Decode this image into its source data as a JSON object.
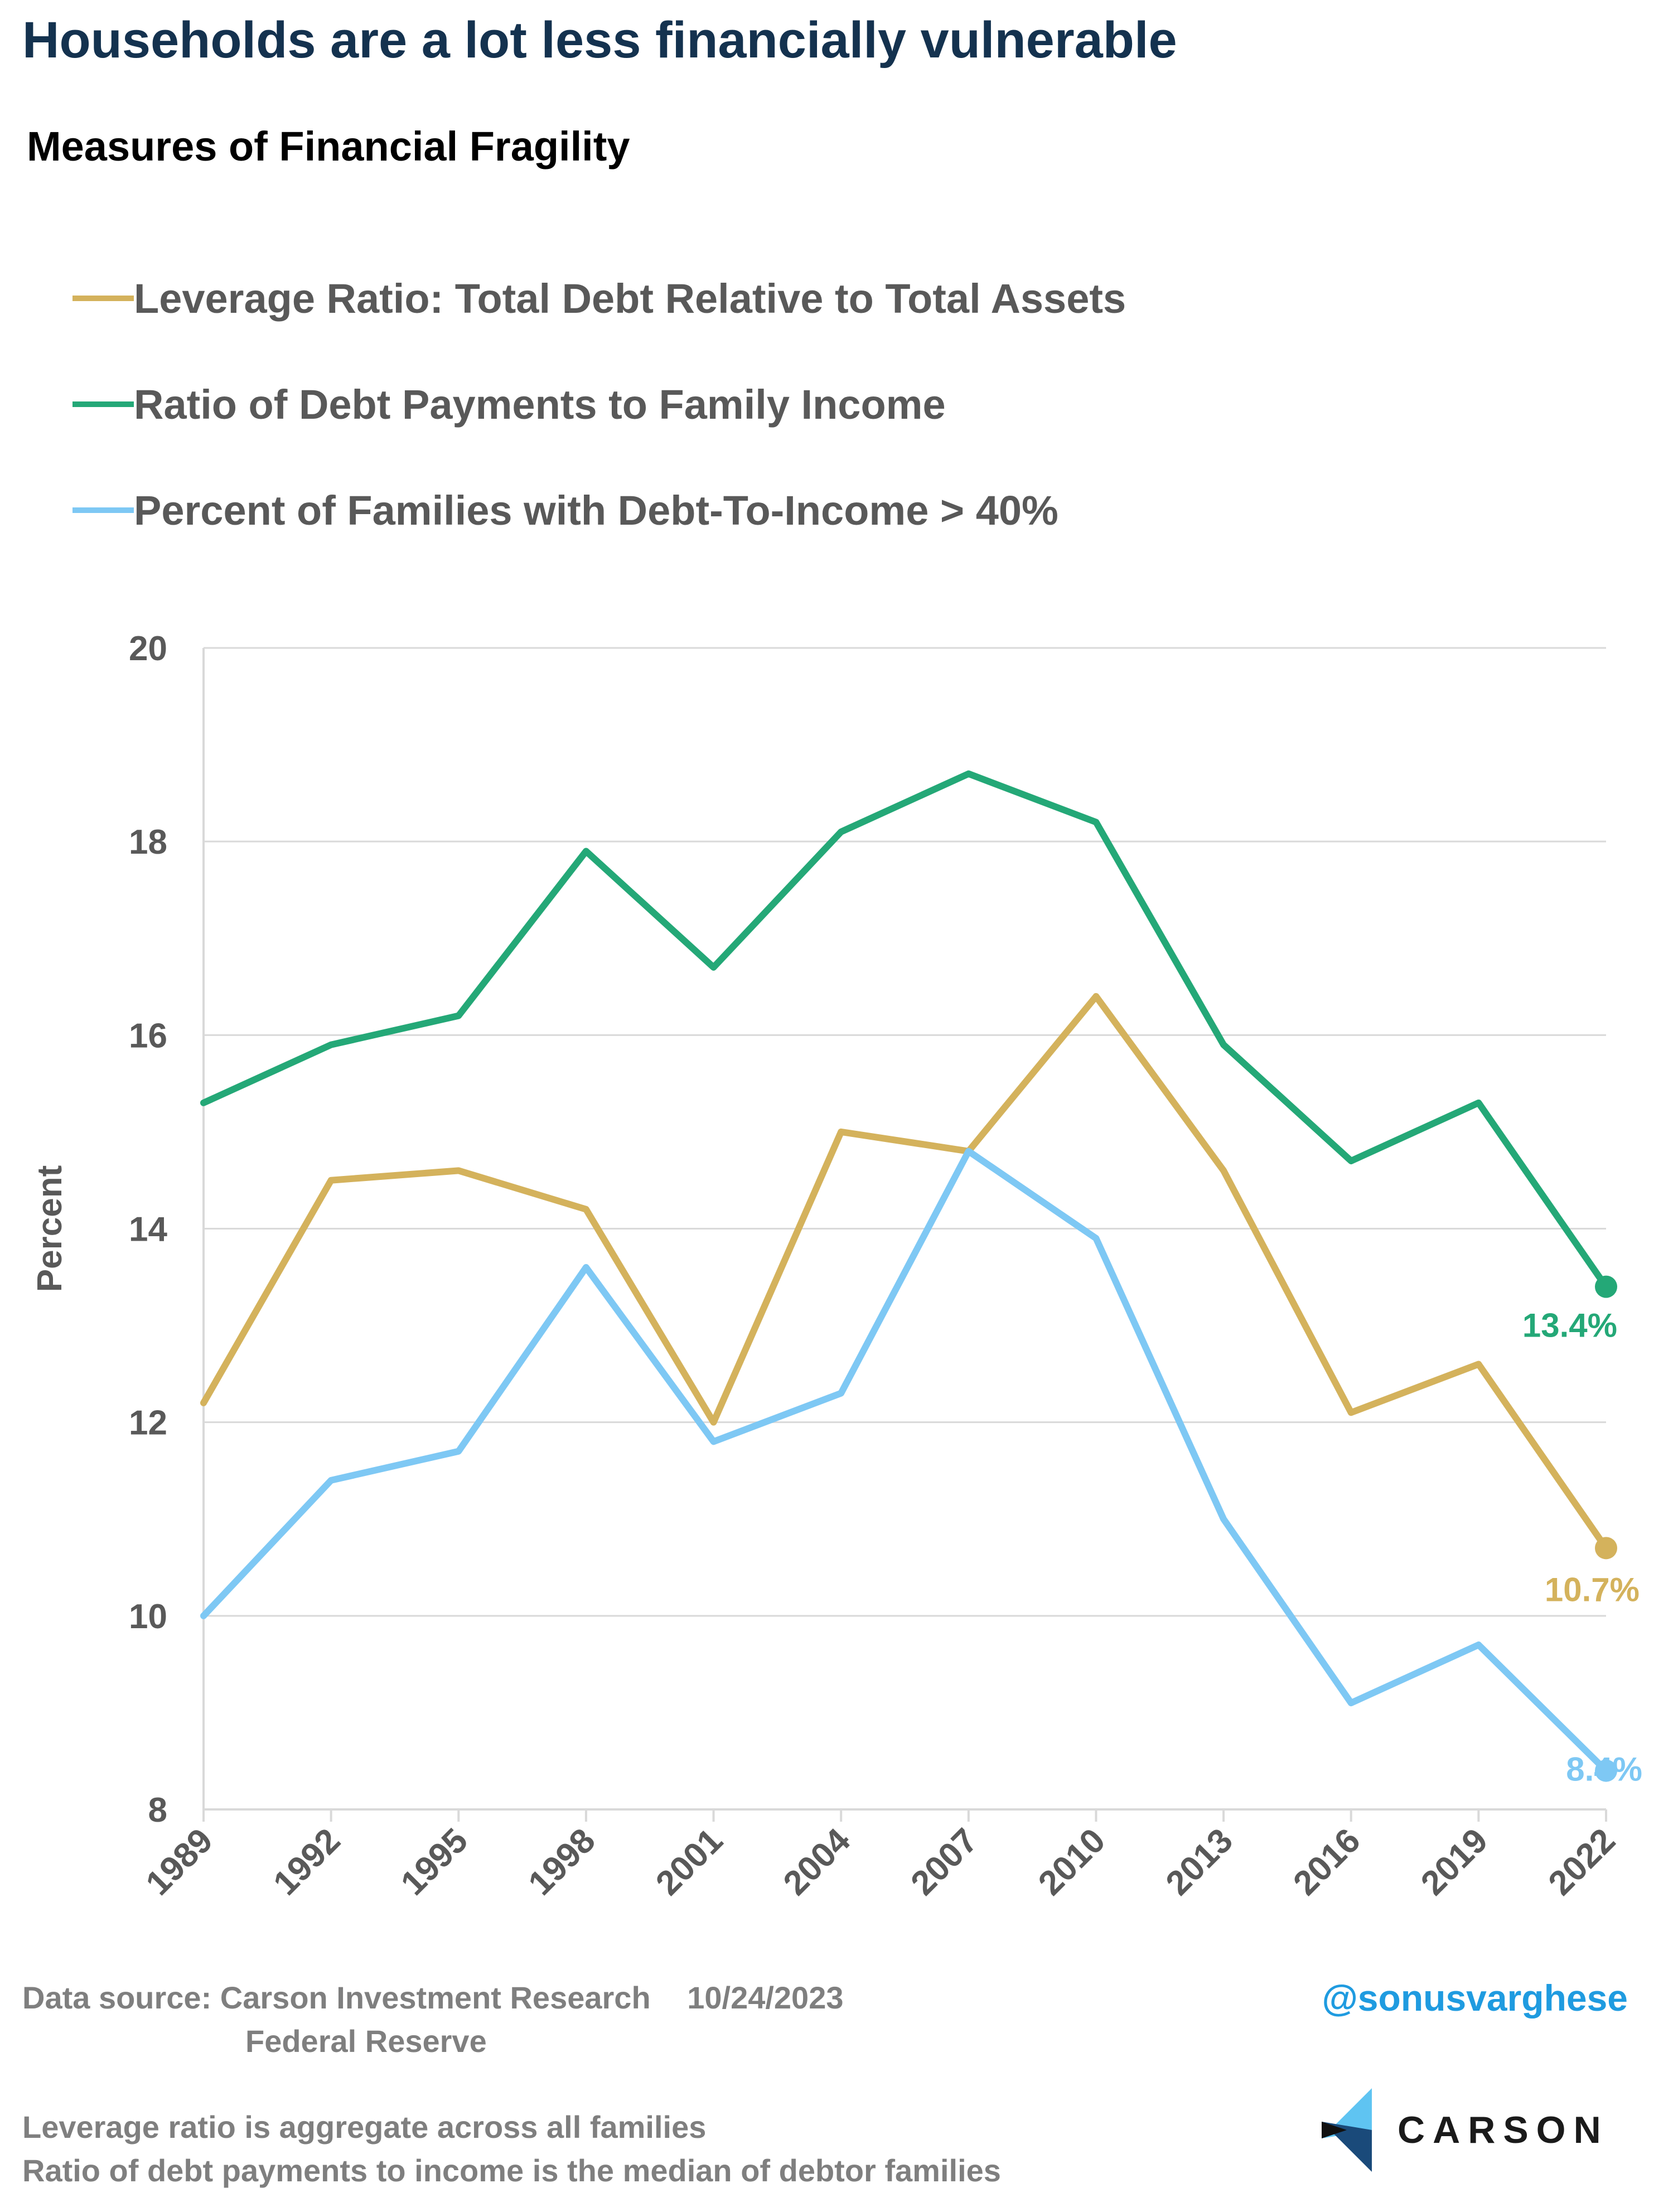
{
  "header": {
    "title": "Households are a lot less financially vulnerable",
    "subtitle": "Measures of Financial Fragility"
  },
  "colors": {
    "leverage": "#d4b25c",
    "debt_payments": "#24a877",
    "dti": "#7ec8f4",
    "grid": "#d9d9d9",
    "axis_text": "#595959"
  },
  "chart_data": {
    "type": "line",
    "title": "Measures of Financial Fragility",
    "ylabel": "Percent",
    "xlabel": "",
    "ylim": [
      8,
      20
    ],
    "yticks": [
      8,
      10,
      12,
      14,
      16,
      18,
      20
    ],
    "grid": true,
    "legend": "top-left",
    "x": [
      "1989",
      "1992",
      "1995",
      "1998",
      "2001",
      "2004",
      "2007",
      "2010",
      "2013",
      "2016",
      "2019",
      "2022"
    ],
    "series": [
      {
        "name": "Leverage Ratio: Total Debt Relative to Total Assets",
        "color": "#d4b25c",
        "values": [
          12.2,
          14.5,
          14.6,
          14.2,
          12.0,
          15.0,
          14.8,
          16.4,
          14.6,
          12.1,
          12.6,
          10.7
        ],
        "end_label": "10.7%"
      },
      {
        "name": "Ratio of Debt Payments to Family Income",
        "color": "#24a877",
        "values": [
          15.3,
          15.9,
          16.2,
          17.9,
          16.7,
          18.1,
          18.7,
          18.2,
          15.9,
          14.7,
          15.3,
          13.4
        ],
        "end_label": "13.4%"
      },
      {
        "name": "Percent of Families with Debt-To-Income > 40%",
        "color": "#7ec8f4",
        "values": [
          10.0,
          11.4,
          11.7,
          13.6,
          11.8,
          12.3,
          14.8,
          13.9,
          11.0,
          9.1,
          9.7,
          8.4
        ],
        "end_label": "8.4%"
      }
    ]
  },
  "footer": {
    "source_label": "Data source:",
    "source_1": "Carson Investment Research",
    "date": "10/24/2023",
    "source_2": "Federal Reserve",
    "handle": "@sonusvarghese",
    "note_1": "Leverage ratio is aggregate across all families",
    "note_2": "Ratio of debt payments to income is the median of debtor families",
    "logo_text": "CARSON",
    "logo_icon": "carson-logo-icon"
  }
}
